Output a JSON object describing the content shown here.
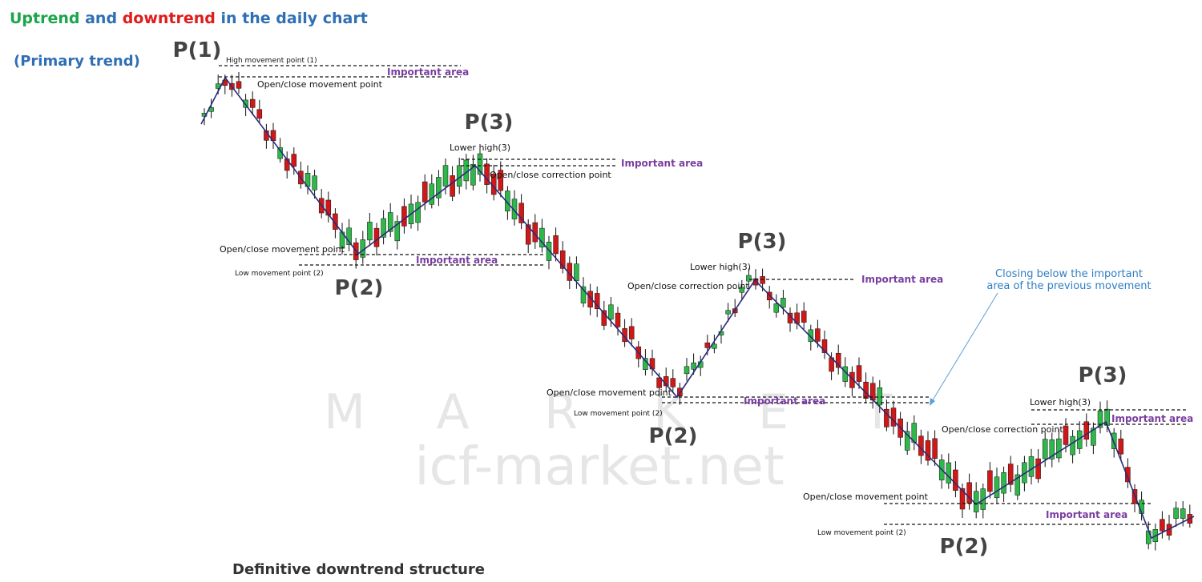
{
  "title": {
    "parts": [
      "Uptrend",
      " and ",
      "downtrend",
      " in the daily chart"
    ]
  },
  "subtitle": "(Primary trend)",
  "points": [
    "P(1)",
    "P(3)",
    "P(2)",
    "P(3)",
    "P(2)",
    "P(3)",
    "P(2)"
  ],
  "annotations": [
    "High movement point (1)",
    "Important area",
    "Open/close movement point",
    "Lower high(3)",
    "Important area",
    "Open/close correction point",
    "Open/close movement point",
    "Low movement point (2)",
    "Important area",
    "Lower high(3)",
    "Important area",
    "Open/close correction point",
    "Open/close movement point",
    "Important area",
    "Low movement point (2)",
    "Lower high(3)",
    "Important area",
    "Open/close correction point",
    "Open/close movement point",
    "Important area",
    "Low movement point (2)"
  ],
  "callout": [
    "Closing below the important",
    "area of the previous movement"
  ],
  "footer": "Definitive downtrend structure",
  "watermark": {
    "letters": [
      "M",
      "A",
      "R",
      "K",
      "E",
      "T"
    ],
    "site": "icf-market.net"
  }
}
